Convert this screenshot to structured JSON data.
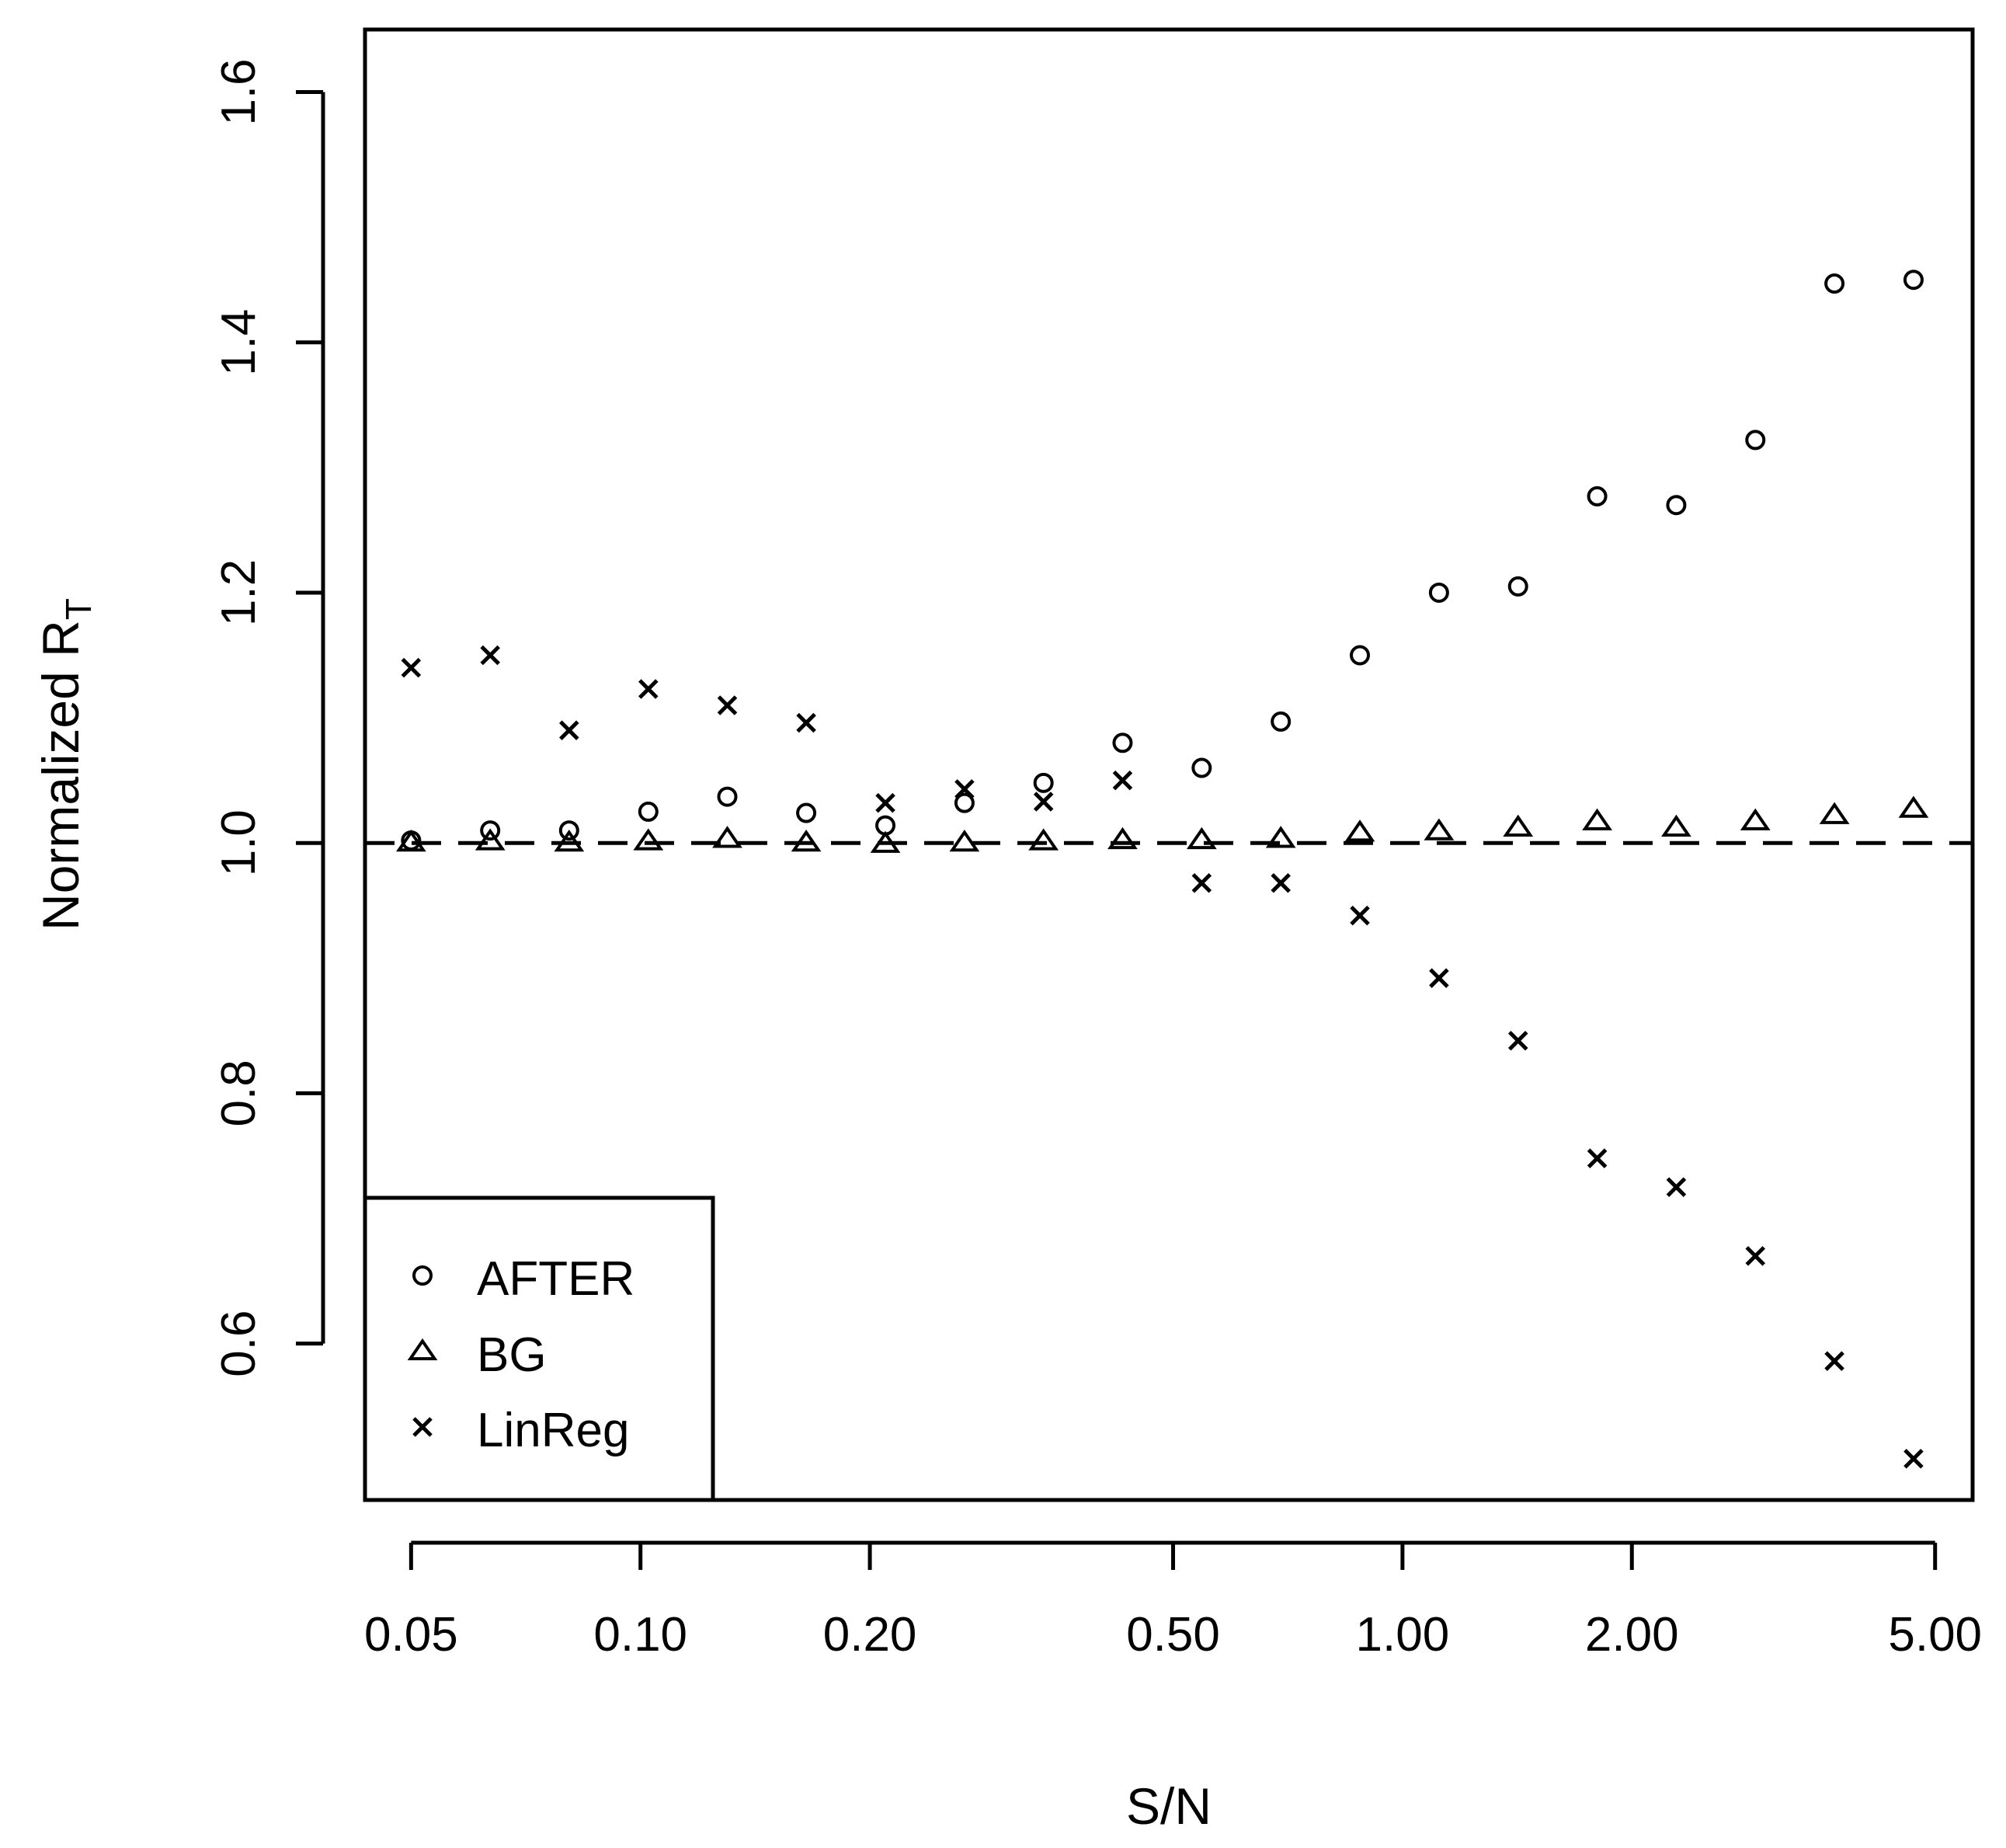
{
  "chart_data": {
    "type": "scatter",
    "xlabel": "S/N",
    "ylabel_main": "Normalized R",
    "ylabel_sub": "T",
    "x_scale": "log",
    "xlim": [
      0.0435,
      5.6
    ],
    "ylim": [
      0.475,
      1.65
    ],
    "x_ticks": [
      0.05,
      0.1,
      0.2,
      0.5,
      1.0,
      2.0,
      5.0
    ],
    "x_tick_labels": [
      "0.05",
      "0.10",
      "0.20",
      "0.50",
      "1.00",
      "2.00",
      "5.00"
    ],
    "y_ticks": [
      0.6,
      0.8,
      1.0,
      1.2,
      1.4,
      1.6
    ],
    "y_tick_labels": [
      "0.6",
      "0.8",
      "1.0",
      "1.2",
      "1.4",
      "1.6"
    ],
    "reference_line": 1.0,
    "grid": false,
    "legend_position": "bottom-left",
    "x": [
      0.05,
      0.0635,
      0.0806,
      0.1024,
      0.13,
      0.165,
      0.2096,
      0.2662,
      0.338,
      0.4292,
      0.5451,
      0.6923,
      0.8792,
      1.1166,
      1.4181,
      1.8009,
      2.2871,
      2.9046,
      3.6887,
      4.6846
    ],
    "series": [
      {
        "name": "AFTER",
        "marker": "circle",
        "values": [
          1.002,
          1.01,
          1.01,
          1.025,
          1.037,
          1.024,
          1.014,
          1.032,
          1.048,
          1.08,
          1.06,
          1.097,
          1.15,
          1.2,
          1.205,
          1.277,
          1.27,
          1.322,
          1.447,
          1.45
        ]
      },
      {
        "name": "BG",
        "marker": "triangle",
        "values": [
          1.0,
          1.001,
          1.0,
          1.001,
          1.003,
          1.0,
          0.999,
          1.0,
          1.001,
          1.002,
          1.002,
          1.003,
          1.008,
          1.009,
          1.012,
          1.017,
          1.012,
          1.017,
          1.022,
          1.027
        ]
      },
      {
        "name": "LinReg",
        "marker": "cross",
        "values": [
          1.14,
          1.15,
          1.09,
          1.123,
          1.11,
          1.096,
          1.032,
          1.043,
          1.033,
          1.05,
          0.968,
          0.968,
          0.942,
          0.892,
          0.842,
          0.748,
          0.725,
          0.67,
          0.586,
          0.508
        ]
      }
    ]
  }
}
